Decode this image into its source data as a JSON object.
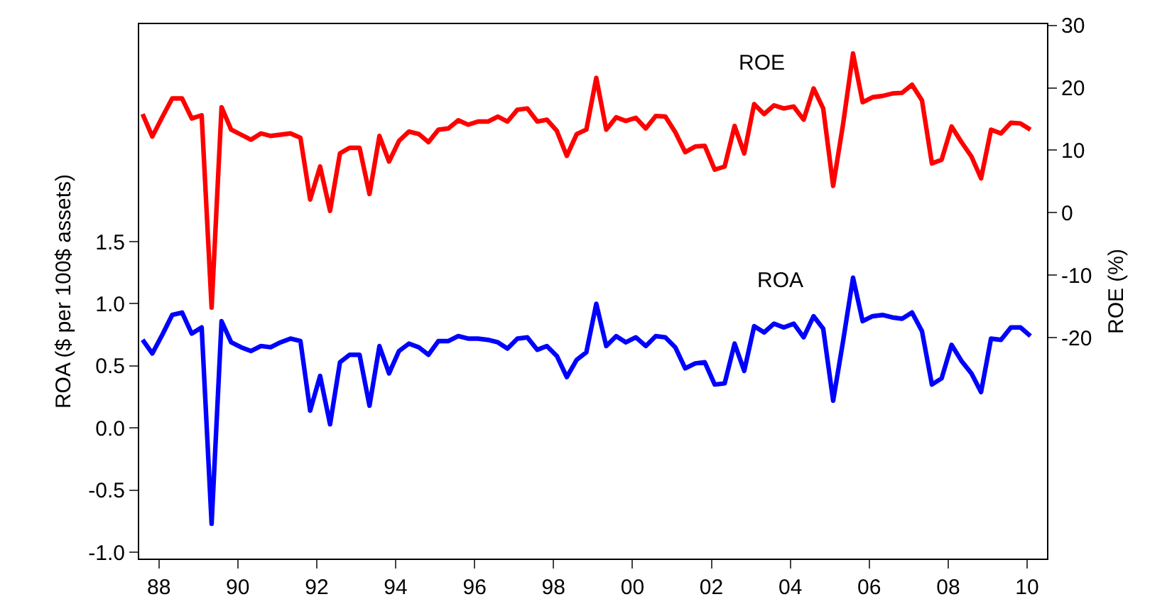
{
  "chart_data": {
    "type": "line",
    "ylabel": "ROA ($ per 100$ assets)",
    "y2label": "ROE (%)",
    "x": [
      "1988-02",
      "1988-05",
      "1988-08",
      "1988-11",
      "1989-02",
      "1989-05",
      "1989-08",
      "1989-11",
      "1990-02",
      "1990-05",
      "1990-08",
      "1990-11",
      "1991-02",
      "1991-05",
      "1991-08",
      "1991-11",
      "1992-02",
      "1992-05",
      "1992-08",
      "1992-11",
      "1993-02",
      "1993-05",
      "1993-08",
      "1993-11",
      "1994-02",
      "1994-05",
      "1994-08",
      "1994-11",
      "1995-02",
      "1995-05",
      "1995-08",
      "1995-11",
      "1996-02",
      "1996-05",
      "1996-08",
      "1996-11",
      "1997-02",
      "1997-05",
      "1997-08",
      "1997-11",
      "1998-02",
      "1998-05",
      "1998-08",
      "1998-11",
      "1999-02",
      "1999-05",
      "1999-08",
      "1999-11",
      "2000-02",
      "2000-05",
      "2000-08",
      "2000-11",
      "2001-02",
      "2001-05",
      "2001-08",
      "2001-11",
      "2002-02",
      "2002-05",
      "2002-08",
      "2002-11",
      "2003-02",
      "2003-05",
      "2003-08",
      "2003-11",
      "2004-02",
      "2004-05",
      "2004-08",
      "2004-11",
      "2005-02",
      "2005-05",
      "2005-08",
      "2005-11",
      "2006-02",
      "2006-05",
      "2006-08",
      "2006-11",
      "2007-02",
      "2007-05",
      "2007-08",
      "2007-11",
      "2008-02",
      "2008-05",
      "2008-08",
      "2008-11",
      "2009-02",
      "2009-05",
      "2009-08",
      "2009-11",
      "2010-02",
      "2010-05",
      "2010-08"
    ],
    "series": [
      {
        "name": "ROA",
        "color": "#0000ff",
        "values": [
          0.71,
          0.6,
          0.75,
          0.91,
          0.93,
          0.76,
          0.81,
          -0.77,
          0.86,
          0.69,
          0.65,
          0.62,
          0.66,
          0.65,
          0.69,
          0.72,
          0.7,
          0.14,
          0.42,
          0.03,
          0.53,
          0.59,
          0.59,
          0.18,
          0.66,
          0.44,
          0.62,
          0.68,
          0.65,
          0.59,
          0.7,
          0.7,
          0.74,
          0.72,
          0.72,
          0.71,
          0.69,
          0.64,
          0.72,
          0.73,
          0.63,
          0.66,
          0.58,
          0.41,
          0.55,
          0.61,
          1.0,
          0.66,
          0.74,
          0.69,
          0.73,
          0.66,
          0.74,
          0.73,
          0.65,
          0.48,
          0.52,
          0.53,
          0.35,
          0.36,
          0.68,
          0.46,
          0.82,
          0.77,
          0.84,
          0.81,
          0.84,
          0.73,
          0.9,
          0.8,
          0.22,
          0.7,
          1.21,
          0.86,
          0.9,
          0.91,
          0.89,
          0.88,
          0.93,
          0.78,
          0.35,
          0.4,
          0.67,
          0.54,
          0.44,
          0.29,
          0.72,
          0.71,
          0.81,
          0.81,
          0.74
        ]
      },
      {
        "name": "ROE",
        "color": "#ff0000",
        "axis": "y2",
        "values": [
          15.8,
          12.2,
          15.3,
          18.3,
          18.3,
          15.1,
          15.6,
          -15.2,
          16.9,
          13.3,
          12.5,
          11.7,
          12.7,
          12.3,
          12.5,
          12.7,
          12.0,
          2.1,
          7.4,
          0.3,
          9.5,
          10.4,
          10.4,
          3.0,
          12.3,
          8.2,
          11.5,
          13.0,
          12.6,
          11.3,
          13.3,
          13.5,
          14.8,
          14.1,
          14.6,
          14.6,
          15.4,
          14.6,
          16.5,
          16.7,
          14.6,
          14.9,
          13.1,
          9.1,
          12.6,
          13.3,
          21.6,
          13.3,
          15.3,
          14.7,
          15.2,
          13.5,
          15.5,
          15.4,
          12.9,
          9.7,
          10.6,
          10.7,
          6.9,
          7.4,
          13.9,
          9.5,
          17.4,
          15.8,
          17.2,
          16.7,
          17.0,
          14.9,
          19.9,
          16.7,
          4.3,
          14.2,
          25.5,
          17.7,
          18.5,
          18.7,
          19.1,
          19.2,
          20.5,
          18.0,
          7.9,
          8.5,
          13.8,
          11.3,
          9.0,
          5.5,
          13.3,
          12.7,
          14.4,
          14.3,
          13.3
        ]
      }
    ],
    "xlim": [
      "1988-01",
      "2011-01"
    ],
    "xticks": [
      {
        "value": "1988-07",
        "label": "88"
      },
      {
        "value": "1990-07",
        "label": "90"
      },
      {
        "value": "1992-07",
        "label": "92"
      },
      {
        "value": "1994-07",
        "label": "94"
      },
      {
        "value": "1996-07",
        "label": "96"
      },
      {
        "value": "1998-07",
        "label": "98"
      },
      {
        "value": "2000-07",
        "label": "00"
      },
      {
        "value": "2002-07",
        "label": "02"
      },
      {
        "value": "2004-07",
        "label": "04"
      },
      {
        "value": "2006-07",
        "label": "06"
      },
      {
        "value": "2008-07",
        "label": "08"
      },
      {
        "value": "2010-07",
        "label": "10"
      }
    ],
    "ylim": [
      -1.05,
      3.25
    ],
    "yticks": [
      {
        "value": -1.0,
        "label": "-1.0"
      },
      {
        "value": -0.5,
        "label": "-0.5"
      },
      {
        "value": 0.0,
        "label": "0.0"
      },
      {
        "value": 0.5,
        "label": "0.5"
      },
      {
        "value": 1.0,
        "label": "1.0"
      },
      {
        "value": 1.5,
        "label": "1.5"
      }
    ],
    "y2lim": [
      -55.4,
      30.2
    ],
    "y2ticks": [
      -20,
      -10,
      0,
      10,
      20,
      30
    ],
    "legend": false,
    "marker": "none",
    "line_style": "solid"
  }
}
